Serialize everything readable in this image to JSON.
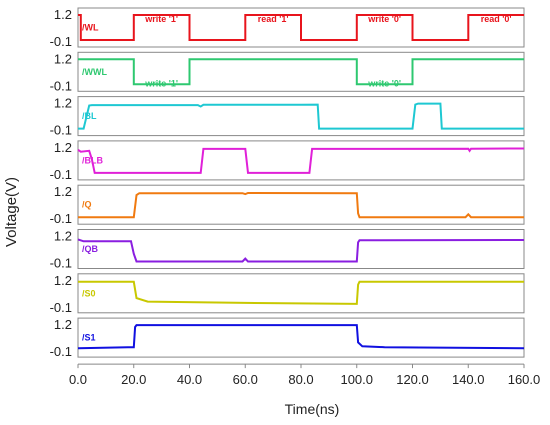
{
  "chart_data": {
    "type": "line",
    "ylabel": "Voltage(V)",
    "xlabel": "Time(ns)",
    "x_ticks": [
      "0.0",
      "20.0",
      "40.0",
      "60.0",
      "80.0",
      "100.0",
      "120.0",
      "140.0",
      "160.0"
    ],
    "xlim": [
      0,
      160
    ],
    "ylim": [
      -0.1,
      1.2
    ],
    "y_tick_labels": [
      "1.2",
      "-0.1"
    ],
    "panels": [
      {
        "name": "/WL",
        "color": "#e8141c",
        "x": [
          0,
          1,
          1,
          20,
          20,
          40,
          40,
          60,
          60,
          80,
          80,
          100,
          100,
          120,
          120,
          140,
          140,
          160
        ],
        "y": [
          1.2,
          1.2,
          -0.1,
          -0.1,
          1.2,
          1.2,
          -0.1,
          -0.1,
          1.2,
          1.2,
          -0.1,
          -0.1,
          1.2,
          1.2,
          -0.1,
          -0.1,
          1.2,
          1.2
        ],
        "annotations": [
          {
            "text": "write '1'",
            "x": 30
          },
          {
            "text": "read '1'",
            "x": 70
          },
          {
            "text": "write '0'",
            "x": 110
          },
          {
            "text": "read '0'",
            "x": 150
          }
        ]
      },
      {
        "name": "/WWL",
        "color": "#2ec870",
        "x": [
          0,
          20,
          20,
          40,
          40,
          100,
          100,
          120,
          120,
          160
        ],
        "y": [
          1.2,
          1.2,
          -0.1,
          -0.1,
          1.2,
          1.2,
          -0.1,
          -0.1,
          1.2,
          1.2
        ],
        "annotations": [
          {
            "text": "write '1'",
            "x": 30
          },
          {
            "text": "write '0'",
            "x": 110
          }
        ]
      },
      {
        "name": "/BL",
        "color": "#1ec8d2",
        "x": [
          0,
          2,
          4,
          5,
          43,
          44,
          45,
          80,
          86,
          86.5,
          120,
          121,
          122,
          130,
          130.5,
          160
        ],
        "y": [
          -0.1,
          -0.1,
          1.1,
          1.12,
          1.12,
          1.05,
          1.14,
          1.14,
          1.15,
          -0.1,
          -0.1,
          1.15,
          1.2,
          1.2,
          -0.1,
          -0.1
        ],
        "annotations": []
      },
      {
        "name": "/BLB",
        "color": "#e020d8",
        "x": [
          0,
          1,
          4,
          5,
          6,
          15,
          44,
          45,
          60,
          61,
          83,
          84,
          100,
          140,
          140.5,
          141,
          160
        ],
        "y": [
          1.1,
          1.0,
          1.05,
          0.6,
          -0.1,
          -0.1,
          -0.1,
          1.15,
          1.15,
          -0.1,
          -0.1,
          1.15,
          1.15,
          1.16,
          1.05,
          1.16,
          1.17
        ],
        "annotations": []
      },
      {
        "name": "/Q",
        "color": "#f07a10",
        "x": [
          0,
          20,
          21,
          22,
          59,
          60,
          61,
          100,
          100.5,
          101,
          139,
          140,
          141,
          160
        ],
        "y": [
          -0.1,
          -0.1,
          1.05,
          1.15,
          1.15,
          1.1,
          1.16,
          1.15,
          0.1,
          -0.1,
          -0.1,
          0.05,
          -0.1,
          -0.1
        ],
        "annotations": []
      },
      {
        "name": "/QB",
        "color": "#8a1ee0",
        "x": [
          0,
          2,
          19,
          20,
          21,
          59,
          60,
          61,
          100,
          100.5,
          101,
          160
        ],
        "y": [
          1.05,
          0.95,
          0.95,
          0.3,
          -0.1,
          -0.1,
          0.05,
          -0.1,
          -0.1,
          0.9,
          1.0,
          1.02
        ],
        "annotations": []
      },
      {
        "name": "/S0",
        "color": "#c8c800",
        "x": [
          0,
          20,
          21,
          25,
          60,
          100,
          100.5,
          101,
          160
        ],
        "y": [
          1.15,
          1.15,
          0.3,
          0.12,
          0.05,
          0.0,
          1.0,
          1.15,
          1.15
        ],
        "annotations": []
      },
      {
        "name": "/S1",
        "color": "#1010e0",
        "x": [
          0,
          18,
          20,
          20.5,
          21,
          100,
          100.5,
          102,
          110,
          160
        ],
        "y": [
          0.0,
          0.05,
          0.05,
          1.1,
          1.2,
          1.2,
          0.3,
          0.1,
          0.05,
          0.0
        ],
        "annotations": []
      }
    ]
  }
}
